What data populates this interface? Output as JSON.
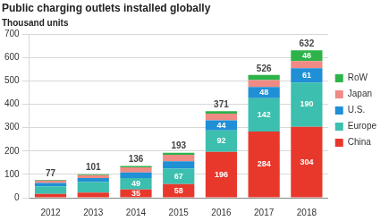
{
  "chart_data": {
    "type": "bar",
    "title": "Public charging outlets installed globally",
    "ylabel": "Thousand units",
    "categories": [
      "2012",
      "2013",
      "2014",
      "2015",
      "2016",
      "2017",
      "2018"
    ],
    "totals": [
      77,
      101,
      136,
      193,
      371,
      526,
      632
    ],
    "series": [
      {
        "name": "China",
        "color": "#e8382c",
        "values": [
          16,
          22,
          35,
          58,
          196,
          284,
          304
        ],
        "value_labels": [
          null,
          null,
          "35",
          "58",
          "196",
          "284",
          "304"
        ]
      },
      {
        "name": "Europe",
        "color": "#3cbfae",
        "values": [
          33,
          45,
          49,
          67,
          92,
          142,
          190
        ],
        "value_labels": [
          null,
          null,
          "49",
          "67",
          "92",
          "142",
          "190"
        ]
      },
      {
        "name": "U.S.",
        "color": "#1f8fd6",
        "values": [
          14,
          17,
          24,
          31,
          44,
          48,
          61
        ],
        "value_labels": [
          null,
          null,
          null,
          null,
          "44",
          "48",
          "61"
        ]
      },
      {
        "name": "Japan",
        "color": "#f08a84",
        "values": [
          11,
          13,
          22,
          28,
          28,
          30,
          31
        ],
        "value_labels": [
          null,
          null,
          null,
          null,
          null,
          null,
          null
        ]
      },
      {
        "name": "RoW",
        "color": "#2db34a",
        "values": [
          3,
          4,
          6,
          9,
          11,
          22,
          46
        ],
        "value_labels": [
          null,
          null,
          null,
          null,
          null,
          null,
          "46"
        ]
      }
    ],
    "stacked": true,
    "data_labels": true,
    "legend": "right",
    "grid": true,
    "ylim": [
      0,
      700
    ],
    "yticks": [
      0,
      100,
      200,
      300,
      400,
      500,
      600,
      700
    ]
  }
}
